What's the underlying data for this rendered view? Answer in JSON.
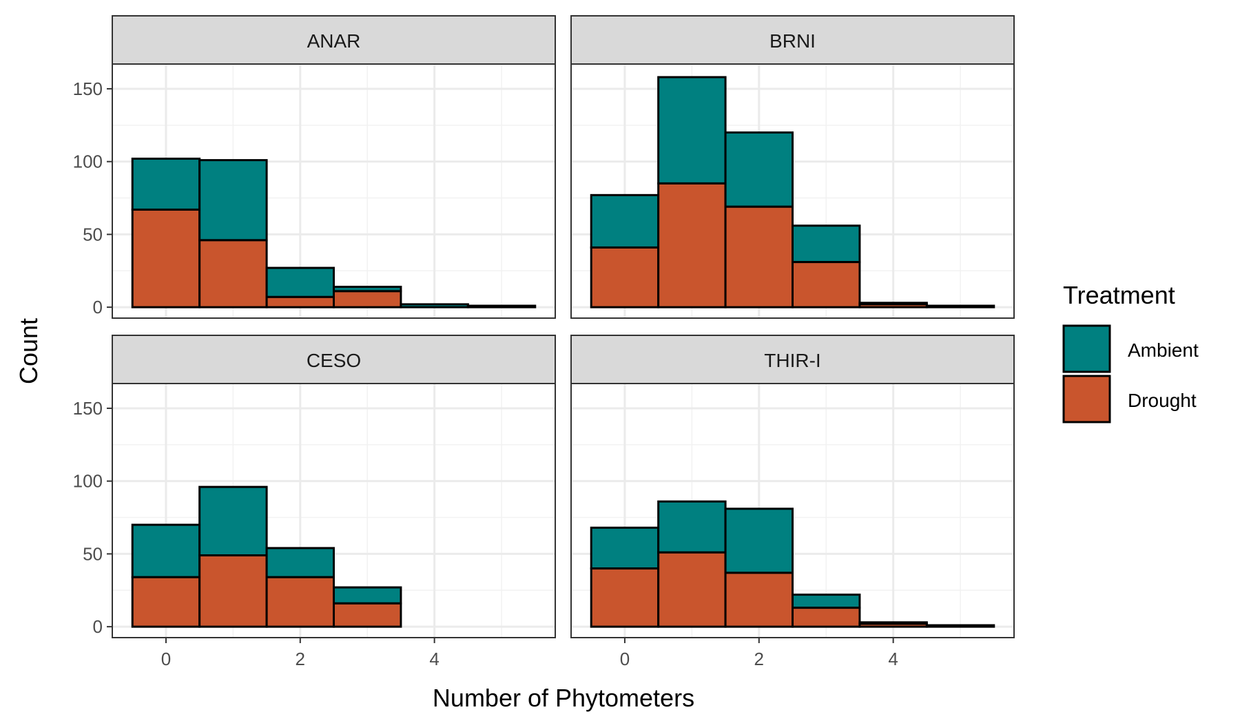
{
  "chart_data": {
    "type": "bar",
    "subtype": "stacked-histogram-facets",
    "xlabel": "Number of Phytometers",
    "ylabel": "Count",
    "xlim": [
      -0.5,
      5.5
    ],
    "ylim": [
      0,
      160
    ],
    "x_ticks": [
      0,
      2,
      4
    ],
    "y_ticks": [
      0,
      50,
      100,
      150
    ],
    "x": [
      0,
      1,
      2,
      3,
      4,
      5
    ],
    "legend": {
      "title": "Treatment",
      "position": "right",
      "items": [
        {
          "name": "Ambient",
          "color": "#008080"
        },
        {
          "name": "Drought",
          "color": "#C9552D"
        }
      ]
    },
    "grid": true,
    "facets": [
      {
        "label": "ANAR",
        "series": [
          {
            "name": "Drought",
            "values": [
              67,
              46,
              7,
              11,
              0,
              0
            ]
          },
          {
            "name": "Ambient",
            "values": [
              35,
              55,
              20,
              3,
              2,
              1
            ]
          }
        ]
      },
      {
        "label": "BRNI",
        "series": [
          {
            "name": "Drought",
            "values": [
              41,
              85,
              69,
              31,
              2,
              0
            ]
          },
          {
            "name": "Ambient",
            "values": [
              36,
              73,
              51,
              25,
              1,
              1
            ]
          }
        ]
      },
      {
        "label": "CESO",
        "series": [
          {
            "name": "Drought",
            "values": [
              34,
              49,
              34,
              16,
              0,
              0
            ]
          },
          {
            "name": "Ambient",
            "values": [
              36,
              47,
              20,
              11,
              0,
              0
            ]
          }
        ]
      },
      {
        "label": "THIR-I",
        "series": [
          {
            "name": "Drought",
            "values": [
              40,
              51,
              37,
              13,
              2,
              0
            ]
          },
          {
            "name": "Ambient",
            "values": [
              28,
              35,
              44,
              9,
              1,
              1
            ]
          }
        ]
      }
    ]
  }
}
